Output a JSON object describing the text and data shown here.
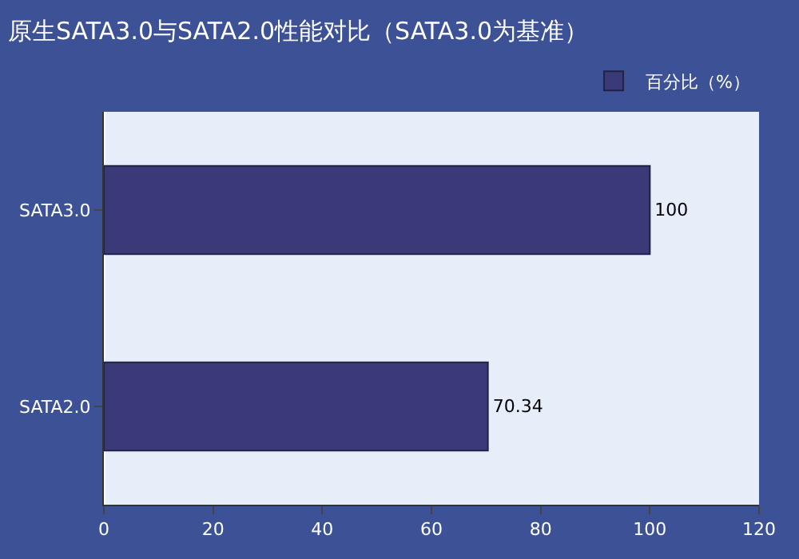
{
  "chart_data": {
    "type": "bar",
    "orientation": "horizontal",
    "title": "原生SATA3.0与SATA2.0性能对比（SATA3.0为基准）",
    "categories": [
      "SATA3.0",
      "SATA2.0"
    ],
    "series": [
      {
        "name": "百分比（%）",
        "color": "#3b3a78",
        "values": [
          100,
          70.34
        ]
      }
    ],
    "value_labels": [
      "100",
      "70.34"
    ],
    "xlim": [
      0,
      120
    ],
    "xticks": [
      0,
      20,
      40,
      60,
      80,
      100,
      120
    ],
    "grid": false,
    "legend": "top right"
  }
}
